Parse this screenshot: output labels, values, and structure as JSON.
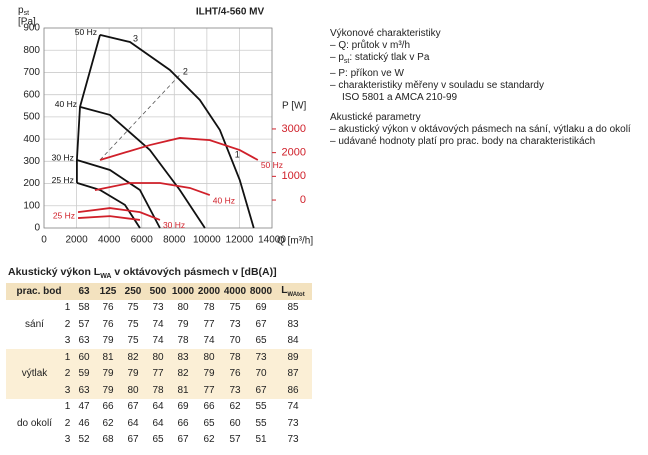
{
  "chart_data": {
    "type": "line",
    "title": "ILHT/4-560 MV",
    "x_label": "Q [m³/h]",
    "y_label": {
      "symbol": "p",
      "sub": "st",
      "unit": "[Pa]"
    },
    "y2_label": "P [W]",
    "xlim": [
      0,
      14000
    ],
    "xticks": [
      0,
      2000,
      4000,
      6000,
      8000,
      10000,
      12000,
      14000
    ],
    "ylim": [
      0,
      900
    ],
    "yticks": [
      0,
      100,
      200,
      300,
      400,
      500,
      600,
      700,
      800,
      900
    ],
    "y2lim": [
      -1180,
      7260
    ],
    "y2ticks": [
      0,
      1000,
      2000,
      3000
    ],
    "y2color": "#d0202a",
    "grid": true,
    "series": [
      {
        "name": "50 Hz",
        "color": "#111111",
        "x": [
          3440,
          5280,
          7730,
          9570,
          10800,
          12020,
          12880
        ],
        "values": [
          869,
          837,
          711,
          576,
          441,
          216,
          0
        ]
      },
      {
        "name": "40 Hz",
        "color": "#111111",
        "x": [
          2210,
          4050,
          6500,
          8340,
          9880
        ],
        "values": [
          545,
          509,
          351,
          171,
          0
        ]
      },
      {
        "name": "30 Hz",
        "color": "#111111",
        "x": [
          2020,
          4050,
          5890,
          7120
        ],
        "values": [
          306,
          261,
          171,
          0
        ]
      },
      {
        "name": "25 Hz",
        "color": "#111111",
        "x": [
          2020,
          3440,
          4970,
          5890
        ],
        "values": [
          203,
          171,
          104,
          0
        ]
      },
      {
        "name": "50 Hz",
        "color": "#d0202a",
        "axis": "y2",
        "x": [
          3440,
          6500,
          8340,
          10180,
          12020,
          13130
        ],
        "values": [
          1690,
          2320,
          2620,
          2530,
          2110,
          1690
        ]
      },
      {
        "name": "40 Hz",
        "color": "#d0202a",
        "axis": "y2",
        "x": [
          3130,
          5280,
          7120,
          8960,
          10180
        ],
        "values": [
          420,
          720,
          720,
          510,
          210
        ]
      },
      {
        "name": "30 Hz",
        "color": "#d0202a",
        "axis": "y2",
        "x": [
          2090,
          4050,
          5890,
          7120
        ],
        "values": [
          -510,
          -340,
          -510,
          -840
        ]
      },
      {
        "name": "25 Hz",
        "color": "#d0202a",
        "axis": "y2",
        "x": [
          2090,
          4050,
          5890
        ],
        "values": [
          -760,
          -680,
          -840
        ]
      }
    ],
    "dashed_line": {
      "x": [
        3440,
        8340
      ],
      "values": [
        306,
        689
      ]
    },
    "annotations": [
      {
        "text": "1",
        "x": 11530,
        "y": 315
      },
      {
        "text": "2",
        "x": 8340,
        "y": 689
      },
      {
        "text": "3",
        "x": 5280,
        "y": 837
      }
    ]
  },
  "description": {
    "heading1": "Výkonové charakteristiky",
    "items1": [
      {
        "text": "– Q: průtok v m³/h"
      },
      {
        "prefix": "– p",
        "sub": "st",
        "suffix": ": statický tlak v Pa"
      },
      {
        "text": "– P: příkon ve W"
      },
      {
        "text": "– charakteristiky měřeny v souladu se standardy"
      },
      {
        "text": "ISO 5801 a AMCA 210-99"
      }
    ],
    "heading2": "Akustické parametry",
    "items2": [
      "– akustický výkon v oktávových pásmech na sání, výtlaku a do okolí",
      "– udávané hodnoty platí pro prac. body na charakteristikách"
    ]
  },
  "table": {
    "title": {
      "prefix": "Akustický výkon L",
      "sub": "WA",
      "suffix": " v oktávových pásmech v [dB(A)]"
    },
    "header": [
      "prac. bod",
      "63",
      "125",
      "250",
      "500",
      "1000",
      "2000",
      "4000",
      "8000"
    ],
    "total_header": {
      "prefix": "L",
      "sub": "WAtot"
    },
    "groups": [
      {
        "name": "sání",
        "rows": [
          [
            1,
            58,
            76,
            75,
            73,
            80,
            78,
            75,
            69,
            85
          ],
          [
            2,
            57,
            76,
            75,
            74,
            79,
            77,
            73,
            67,
            83
          ],
          [
            3,
            63,
            79,
            75,
            74,
            78,
            74,
            70,
            65,
            84
          ]
        ]
      },
      {
        "name": "výtlak",
        "rows": [
          [
            1,
            60,
            81,
            82,
            80,
            83,
            80,
            78,
            73,
            89
          ],
          [
            2,
            59,
            79,
            79,
            77,
            82,
            79,
            76,
            70,
            87
          ],
          [
            3,
            63,
            79,
            80,
            78,
            81,
            77,
            73,
            67,
            86
          ]
        ]
      },
      {
        "name": "do okolí",
        "rows": [
          [
            1,
            47,
            66,
            67,
            64,
            69,
            66,
            62,
            55,
            74
          ],
          [
            2,
            46,
            62,
            64,
            64,
            66,
            65,
            60,
            55,
            73
          ],
          [
            3,
            52,
            68,
            67,
            65,
            67,
            62,
            57,
            51,
            73
          ]
        ]
      }
    ]
  }
}
